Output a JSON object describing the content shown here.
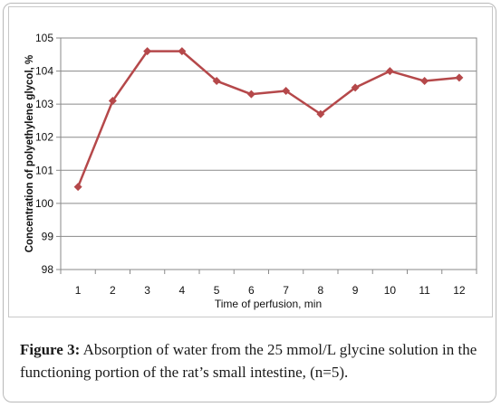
{
  "chart_data": {
    "type": "line",
    "xlabel": "Time of perfusion, min",
    "ylabel": "Concentration of polyethylene glycol, %",
    "categories": [
      "1",
      "2",
      "3",
      "4",
      "5",
      "6",
      "7",
      "8",
      "9",
      "10",
      "11",
      "12"
    ],
    "series": [
      {
        "values": [
          100.5,
          103.1,
          104.6,
          104.6,
          103.7,
          103.3,
          103.4,
          102.7,
          103.5,
          104.0,
          103.7,
          103.8
        ]
      }
    ],
    "ylim": [
      98,
      105
    ],
    "yticks": [
      "98",
      "99",
      "100",
      "101",
      "102",
      "103",
      "104",
      "105"
    ],
    "grid": true,
    "line_color": "#b5484a"
  },
  "caption": {
    "label": "Figure 3:",
    "text": " Absorption of water from the 25 mmol/L glycine solution in the functioning portion of the rat’s small intestine, (n=5)."
  }
}
